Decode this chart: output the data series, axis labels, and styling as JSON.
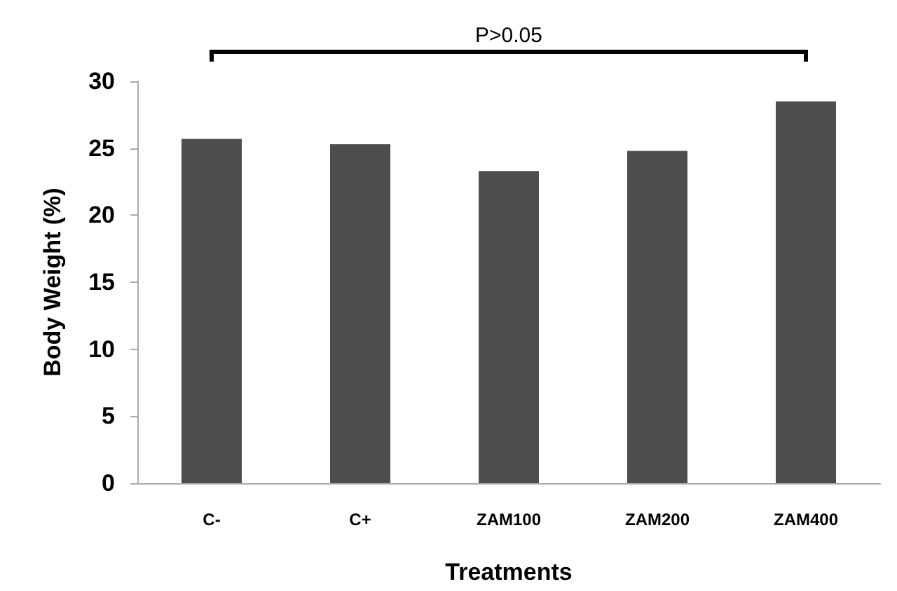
{
  "chart_data": {
    "type": "bar",
    "xlabel": "Treatments",
    "ylabel": "Body Weight (%)",
    "categories": [
      "C-",
      "C+",
      "ZAM100",
      "ZAM200",
      "ZAM400"
    ],
    "values": [
      25.7,
      25.3,
      23.3,
      24.8,
      28.5
    ],
    "color": "#4d4d4d",
    "ylim": [
      0,
      30
    ],
    "yticks": [
      0,
      5,
      10,
      15,
      20,
      25,
      30
    ],
    "grid": false,
    "annotations": [
      "P>0.05"
    ]
  }
}
